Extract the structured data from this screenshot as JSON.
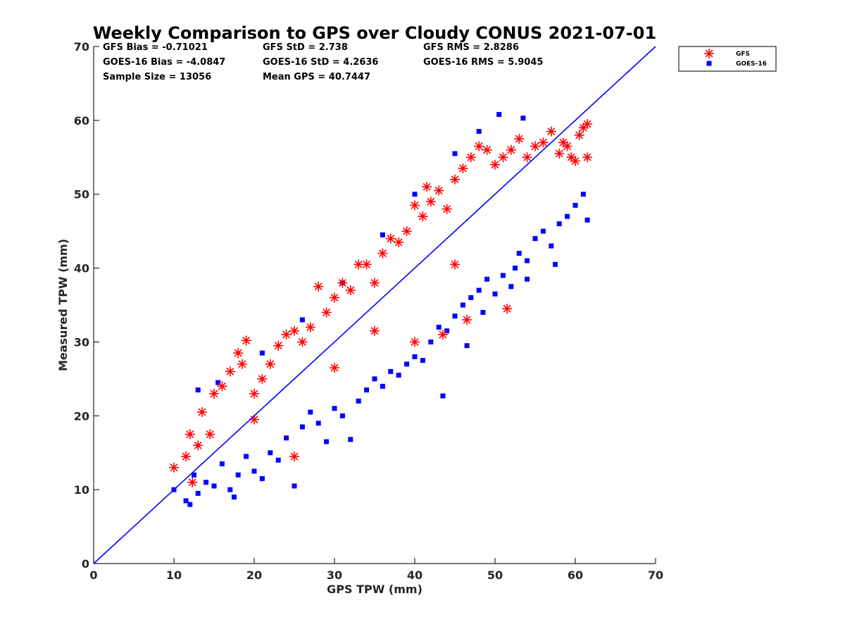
{
  "chart_data": {
    "type": "scatter",
    "title": "Weekly Comparison to GPS over Cloudy CONUS 2021-07-01",
    "xlabel": "GPS TPW (mm)",
    "ylabel": "Measured TPW (mm)",
    "xlim": [
      0,
      70
    ],
    "ylim": [
      0,
      70
    ],
    "xticks": [
      "0",
      "10",
      "20",
      "30",
      "40",
      "50",
      "60",
      "70"
    ],
    "yticks": [
      "0",
      "10",
      "20",
      "30",
      "40",
      "50",
      "60",
      "70"
    ],
    "grid": false,
    "legend_position": "outside-top-right",
    "one_to_one_line": {
      "from": [
        0,
        0
      ],
      "to": [
        70,
        70
      ],
      "color": "#0000ff"
    },
    "stats": [
      "GFS Bias = -0.71021",
      "GFS StD = 2.738",
      "GFS RMS = 2.8286",
      "GOES-16 Bias = -4.0847",
      "GOES-16 StD = 4.2636",
      "GOES-16 RMS = 5.9045",
      "Sample Size = 13056",
      "Mean GPS = 40.7447"
    ],
    "series": [
      {
        "name": "GFS",
        "marker": "asterisk",
        "color": "#ff0000",
        "points": [
          [
            10.0,
            13.0
          ],
          [
            11.5,
            14.5
          ],
          [
            12.0,
            17.5
          ],
          [
            12.3,
            11.0
          ],
          [
            13.0,
            16.0
          ],
          [
            13.5,
            20.5
          ],
          [
            14.5,
            17.5
          ],
          [
            15.0,
            23.0
          ],
          [
            16.0,
            24.0
          ],
          [
            17.0,
            26.0
          ],
          [
            18.0,
            28.5
          ],
          [
            18.5,
            27.0
          ],
          [
            19.0,
            30.2
          ],
          [
            20.0,
            23.0
          ],
          [
            21.0,
            25.0
          ],
          [
            22.0,
            27.0
          ],
          [
            23.0,
            29.5
          ],
          [
            24.0,
            31.0
          ],
          [
            25.0,
            31.5
          ],
          [
            25.0,
            14.5
          ],
          [
            26.0,
            30.0
          ],
          [
            27.0,
            32.0
          ],
          [
            28.0,
            37.5
          ],
          [
            29.0,
            34.0
          ],
          [
            30.0,
            36.0
          ],
          [
            31.0,
            38.0
          ],
          [
            32.0,
            37.0
          ],
          [
            33.0,
            40.5
          ],
          [
            34.0,
            40.5
          ],
          [
            35.0,
            38.0
          ],
          [
            36.0,
            42.0
          ],
          [
            37.0,
            44.0
          ],
          [
            38.0,
            43.5
          ],
          [
            39.0,
            45.0
          ],
          [
            40.0,
            48.5
          ],
          [
            41.0,
            47.0
          ],
          [
            41.5,
            51.0
          ],
          [
            42.0,
            49.0
          ],
          [
            43.0,
            50.5
          ],
          [
            44.0,
            48.0
          ],
          [
            45.0,
            52.0
          ],
          [
            46.0,
            53.5
          ],
          [
            46.5,
            33.0
          ],
          [
            47.0,
            55.0
          ],
          [
            48.0,
            56.5
          ],
          [
            49.0,
            56.0
          ],
          [
            50.0,
            54.0
          ],
          [
            51.0,
            55.0
          ],
          [
            51.5,
            34.5
          ],
          [
            52.0,
            56.0
          ],
          [
            53.0,
            57.5
          ],
          [
            54.0,
            55.0
          ],
          [
            55.0,
            56.5
          ],
          [
            56.0,
            57.0
          ],
          [
            57.0,
            58.5
          ],
          [
            58.0,
            55.5
          ],
          [
            58.5,
            57.0
          ],
          [
            59.0,
            56.5
          ],
          [
            59.5,
            55.0
          ],
          [
            60.0,
            54.5
          ],
          [
            60.5,
            58.0
          ],
          [
            61.0,
            59.0
          ],
          [
            61.5,
            59.5
          ],
          [
            61.5,
            55.0
          ],
          [
            40.0,
            30.0
          ],
          [
            43.5,
            31.0
          ],
          [
            30.0,
            26.5
          ],
          [
            20.0,
            19.5
          ],
          [
            35.0,
            31.5
          ],
          [
            45.0,
            40.5
          ]
        ]
      },
      {
        "name": "GOES-16",
        "marker": "square",
        "color": "#0000ff",
        "points": [
          [
            10.0,
            10.0
          ],
          [
            11.5,
            8.5
          ],
          [
            12.0,
            8.0
          ],
          [
            12.5,
            12.0
          ],
          [
            13.0,
            9.5
          ],
          [
            14.0,
            11.0
          ],
          [
            15.0,
            10.5
          ],
          [
            16.0,
            13.5
          ],
          [
            17.0,
            10.0
          ],
          [
            17.5,
            9.0
          ],
          [
            18.0,
            12.0
          ],
          [
            19.0,
            14.5
          ],
          [
            20.0,
            12.5
          ],
          [
            21.0,
            11.5
          ],
          [
            22.0,
            15.0
          ],
          [
            23.0,
            14.0
          ],
          [
            24.0,
            17.0
          ],
          [
            25.0,
            10.5
          ],
          [
            26.0,
            18.5
          ],
          [
            27.0,
            20.5
          ],
          [
            28.0,
            19.0
          ],
          [
            29.0,
            16.5
          ],
          [
            30.0,
            21.0
          ],
          [
            31.0,
            20.0
          ],
          [
            32.0,
            16.8
          ],
          [
            33.0,
            22.0
          ],
          [
            34.0,
            23.5
          ],
          [
            35.0,
            25.0
          ],
          [
            36.0,
            24.0
          ],
          [
            37.0,
            26.0
          ],
          [
            38.0,
            25.5
          ],
          [
            39.0,
            27.0
          ],
          [
            40.0,
            28.0
          ],
          [
            41.0,
            27.5
          ],
          [
            42.0,
            30.0
          ],
          [
            43.0,
            32.0
          ],
          [
            43.5,
            22.7
          ],
          [
            44.0,
            31.5
          ],
          [
            45.0,
            33.5
          ],
          [
            46.0,
            35.0
          ],
          [
            46.5,
            29.5
          ],
          [
            47.0,
            36.0
          ],
          [
            48.0,
            37.0
          ],
          [
            49.0,
            38.5
          ],
          [
            50.0,
            36.5
          ],
          [
            51.0,
            39.0
          ],
          [
            52.0,
            37.5
          ],
          [
            52.5,
            40.0
          ],
          [
            53.0,
            42.0
          ],
          [
            54.0,
            41.0
          ],
          [
            55.0,
            44.0
          ],
          [
            56.0,
            45.0
          ],
          [
            57.0,
            43.0
          ],
          [
            58.0,
            46.0
          ],
          [
            59.0,
            47.0
          ],
          [
            60.0,
            48.5
          ],
          [
            61.0,
            50.0
          ],
          [
            61.5,
            46.5
          ],
          [
            50.5,
            60.8
          ],
          [
            53.5,
            60.3
          ],
          [
            48.0,
            58.5
          ],
          [
            45.0,
            55.5
          ],
          [
            40.0,
            50.0
          ],
          [
            36.0,
            44.5
          ],
          [
            31.0,
            38.0
          ],
          [
            26.0,
            33.0
          ],
          [
            21.0,
            28.5
          ],
          [
            15.5,
            24.5
          ],
          [
            13.0,
            23.5
          ],
          [
            57.5,
            40.5
          ],
          [
            54.0,
            38.5
          ],
          [
            48.5,
            34.0
          ]
        ]
      }
    ]
  }
}
